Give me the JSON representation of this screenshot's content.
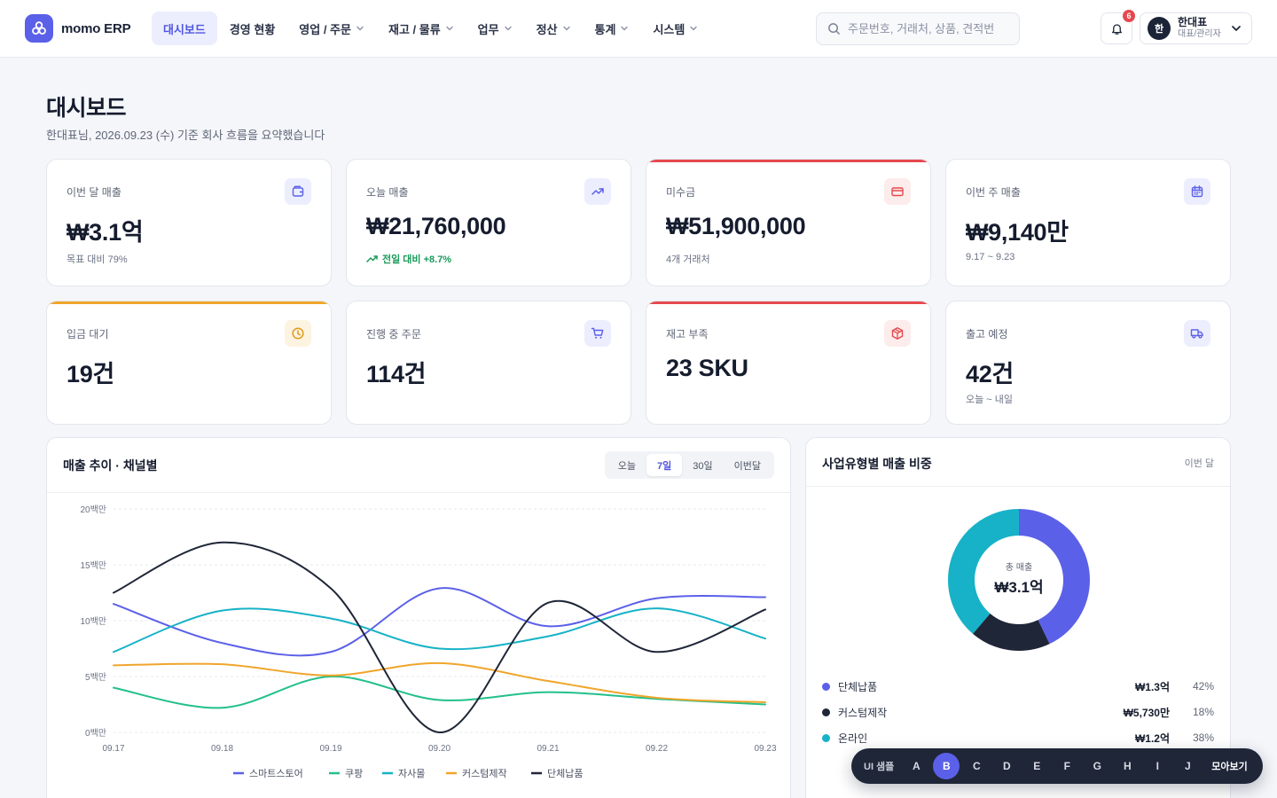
{
  "app": {
    "name": "momo ERP"
  },
  "nav": [
    {
      "label": "대시보드",
      "has_menu": false
    },
    {
      "label": "경영 현황",
      "has_menu": false
    },
    {
      "label": "영업 / 주문",
      "has_menu": true
    },
    {
      "label": "재고 / 물류",
      "has_menu": true
    },
    {
      "label": "업무",
      "has_menu": true
    },
    {
      "label": "정산",
      "has_menu": true
    },
    {
      "label": "통계",
      "has_menu": true
    },
    {
      "label": "시스템",
      "has_menu": true
    }
  ],
  "search": {
    "placeholder": "주문번호, 거래처, 상품, 견적번"
  },
  "notifications": {
    "count": "6"
  },
  "user": {
    "initial": "한",
    "name": "한대표",
    "role": "대표/관리자"
  },
  "page": {
    "title": "대시보드",
    "subtitle": "한대표님, 2026.09.23 (수) 기준 회사 흐름을 요약했습니다"
  },
  "kpis": [
    {
      "label": "이번 달 매출",
      "value": "₩3.1억",
      "foot": "목표 대비 79%",
      "icon": "wallet-icon",
      "accent": ""
    },
    {
      "label": "오늘 매출",
      "value": "₩21,760,000",
      "foot": "전일 대비 +8.7%",
      "icon": "trend-up-icon",
      "accent": ""
    },
    {
      "label": "미수금",
      "value": "₩51,900,000",
      "foot": "4개 거래처",
      "icon": "credit-card-icon",
      "accent": "#e5484d"
    },
    {
      "label": "이번 주 매출",
      "value": "₩9,140만",
      "foot": "9.17 ~ 9.23",
      "icon": "calendar-icon",
      "accent": ""
    },
    {
      "label": "입금 대기",
      "value": "19건",
      "foot": "",
      "icon": "clock-icon",
      "accent": "#f0a52b"
    },
    {
      "label": "진행 중 주문",
      "value": "114건",
      "foot": "",
      "icon": "cart-icon",
      "accent": ""
    },
    {
      "label": "재고 부족",
      "value": "23 SKU",
      "foot": "",
      "icon": "box-icon",
      "accent": "#e5484d"
    },
    {
      "label": "출고 예정",
      "value": "42건",
      "foot": "오늘 ~ 내일",
      "icon": "truck-icon",
      "accent": ""
    }
  ],
  "sales_panel": {
    "title": "매출 추이 · 채널별",
    "ranges": [
      "오늘",
      "7일",
      "30일",
      "이번달"
    ],
    "active_range": "7일"
  },
  "share_panel": {
    "title": "사업유형별 매출 비중",
    "period": "이번 달",
    "center_label": "총 매출",
    "center_value": "₩3.1억",
    "rows": [
      {
        "name": "단체납품",
        "amount": "₩1.3억",
        "pct": "42%",
        "color": "#5b60e8"
      },
      {
        "name": "커스텀제작",
        "amount": "₩5,730만",
        "pct": "18%",
        "color": "#1f2638"
      },
      {
        "name": "온라인",
        "amount": "₩1.2억",
        "pct": "38%",
        "color": "#17b2c7"
      }
    ]
  },
  "sample_bar": {
    "label": "UI 샘플",
    "options": [
      "A",
      "B",
      "C",
      "D",
      "E",
      "F",
      "G",
      "H",
      "I",
      "J"
    ],
    "active": "B",
    "view_all": "모아보기"
  },
  "chart_data": [
    {
      "type": "line",
      "title": "매출 추이 · 채널별",
      "x": [
        "09.17",
        "09.18",
        "09.19",
        "09.20",
        "09.21",
        "09.22",
        "09.23"
      ],
      "ylim": [
        0,
        20
      ],
      "yticks": [
        "0백만",
        "5백만",
        "10백만",
        "15백만",
        "20백만"
      ],
      "grid": true,
      "legend": "bottom",
      "series": [
        {
          "name": "스마트스토어",
          "color": "#5b60e8",
          "values": [
            11.5,
            8.0,
            7.2,
            12.9,
            9.5,
            12.0,
            12.1
          ]
        },
        {
          "name": "쿠팡",
          "color": "#22c08a",
          "values": [
            4.0,
            2.2,
            5.0,
            2.9,
            3.6,
            3.0,
            2.5
          ]
        },
        {
          "name": "자사몰",
          "color": "#17b2c7",
          "values": [
            7.2,
            10.9,
            10.2,
            7.5,
            8.6,
            11.1,
            8.4
          ]
        },
        {
          "name": "커스텀제작",
          "color": "#f0a52b",
          "values": [
            6.0,
            6.1,
            5.1,
            6.2,
            4.6,
            3.1,
            2.7
          ]
        },
        {
          "name": "단체납품",
          "color": "#1f2638",
          "values": [
            12.5,
            17.0,
            12.9,
            0.0,
            11.6,
            7.2,
            11.0
          ]
        }
      ]
    },
    {
      "type": "pie",
      "title": "사업유형별 매출 비중",
      "labels": [
        "단체납품",
        "커스텀제작",
        "온라인"
      ],
      "values": [
        42,
        18,
        38
      ],
      "colors": [
        "#5b60e8",
        "#1f2638",
        "#17b2c7"
      ]
    }
  ]
}
